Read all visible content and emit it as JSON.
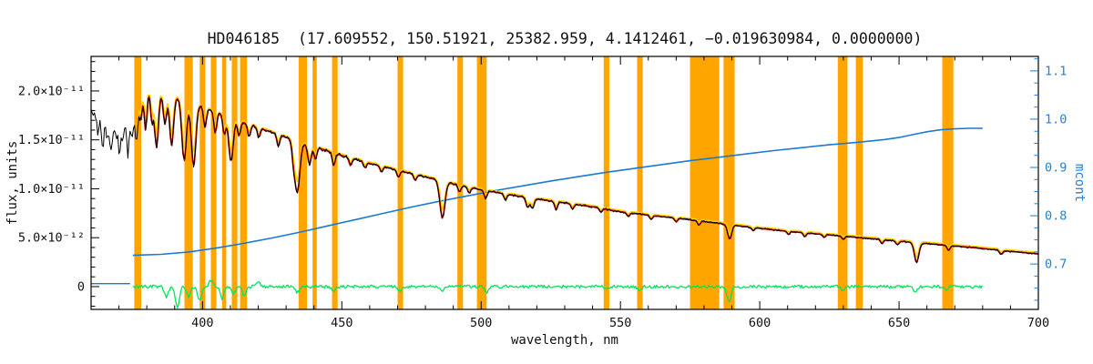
{
  "chart_data": {
    "type": "line",
    "title": "HD046185  (17.609552, 150.51921, 25382.959, 4.1412461, −0.019630984, 0.0000000)",
    "xlabel": "wavelength, nm",
    "ylabel_left": "flux, units",
    "ylabel_right": "mcont",
    "xlim": [
      360,
      700
    ],
    "ylim_left_e11": [
      -0.233,
      2.353
    ],
    "ylim_right": [
      0.606,
      1.13
    ],
    "flux_unit_scale": "1e-11",
    "grid": false,
    "legend": "none",
    "x_ticks": {
      "major": [
        400,
        450,
        500,
        550,
        600,
        650,
        700
      ],
      "labels": [
        "400",
        "450",
        "500",
        "550",
        "600",
        "650",
        "700"
      ],
      "minor_step": 10
    },
    "y_ticks_left": {
      "values_e11": [
        0,
        0.5,
        1.0,
        1.5,
        2.0
      ],
      "labels": [
        "0",
        "5.0×10⁻¹²",
        "1.0×10⁻¹¹",
        "1.5×10⁻¹¹",
        "2.0×10⁻¹¹"
      ],
      "minor_step_e11": 0.1
    },
    "y_ticks_right": {
      "values": [
        0.7,
        0.8,
        0.9,
        1.0,
        1.1
      ],
      "labels": [
        "0.7",
        "0.8",
        "0.9",
        "1.0",
        "1.1"
      ],
      "minor_step": 0.025
    },
    "colors": {
      "band": "#FFA500",
      "flux": "#000000",
      "model": "#DE0000",
      "continuum": "#FFD800",
      "mcont": "#1A7AD4",
      "right_axis": "#1A7AD4",
      "residual": "#00E55A",
      "axis": "#000000",
      "background": "#FFFFFF"
    },
    "masked_bands": [
      [
        375.5,
        378
      ],
      [
        393.5,
        396.5
      ],
      [
        399,
        401
      ],
      [
        403,
        405
      ],
      [
        407,
        408.5
      ],
      [
        410.5,
        412.5
      ],
      [
        413.5,
        416
      ],
      [
        434.5,
        437.5
      ],
      [
        439.5,
        441
      ],
      [
        446.5,
        448.5
      ],
      [
        470,
        472
      ],
      [
        491.5,
        493.5
      ],
      [
        498.5,
        502
      ],
      [
        544,
        546
      ],
      [
        556,
        558
      ],
      [
        575,
        585.5
      ],
      [
        587,
        591
      ],
      [
        628,
        631.5
      ],
      [
        634.5,
        637
      ],
      [
        665.5,
        669.5
      ]
    ],
    "series": {
      "flux_continuum_e11": [
        [
          360,
          1.78
        ],
        [
          364,
          1.81
        ],
        [
          368,
          1.85
        ],
        [
          372,
          1.9
        ],
        [
          376,
          1.96
        ],
        [
          380,
          2.02
        ],
        [
          384,
          2.0
        ],
        [
          388,
          1.97
        ],
        [
          392,
          1.92
        ],
        [
          396,
          1.88
        ],
        [
          400,
          1.84
        ],
        [
          405,
          1.78
        ],
        [
          410,
          1.73
        ],
        [
          415,
          1.675
        ],
        [
          420,
          1.625
        ],
        [
          425,
          1.575
        ],
        [
          430,
          1.525
        ],
        [
          435,
          1.475
        ],
        [
          440,
          1.43
        ],
        [
          445,
          1.385
        ],
        [
          450,
          1.34
        ],
        [
          455,
          1.3
        ],
        [
          460,
          1.26
        ],
        [
          465,
          1.225
        ],
        [
          470,
          1.19
        ],
        [
          475,
          1.155
        ],
        [
          480,
          1.12
        ],
        [
          485,
          1.085
        ],
        [
          490,
          1.05
        ],
        [
          495,
          1.02
        ],
        [
          500,
          0.99
        ],
        [
          510,
          0.94
        ],
        [
          520,
          0.895
        ],
        [
          530,
          0.855
        ],
        [
          540,
          0.815
        ],
        [
          550,
          0.765
        ],
        [
          560,
          0.73
        ],
        [
          570,
          0.7
        ],
        [
          580,
          0.665
        ],
        [
          590,
          0.63
        ],
        [
          600,
          0.595
        ],
        [
          610,
          0.565
        ],
        [
          620,
          0.54
        ],
        [
          630,
          0.515
        ],
        [
          640,
          0.49
        ],
        [
          650,
          0.465
        ],
        [
          660,
          0.44
        ],
        [
          670,
          0.415
        ],
        [
          680,
          0.39
        ],
        [
          690,
          0.36
        ],
        [
          700,
          0.335
        ]
      ],
      "absorption_lines": [
        [
          362.5,
          0.25,
          0.5
        ],
        [
          364.2,
          0.42,
          0.5
        ],
        [
          365.8,
          0.3,
          0.5
        ],
        [
          367.2,
          0.45,
          0.55
        ],
        [
          368.8,
          0.32,
          0.5
        ],
        [
          370.2,
          0.5,
          0.55
        ],
        [
          371.6,
          0.36,
          0.5
        ],
        [
          373.2,
          0.55,
          0.55
        ],
        [
          374.6,
          0.4,
          0.5
        ],
        [
          376.2,
          0.48,
          0.55
        ],
        [
          377.8,
          0.3,
          0.5
        ],
        [
          379.6,
          0.42,
          0.5
        ],
        [
          381.8,
          0.3,
          0.5
        ],
        [
          383.5,
          0.58,
          0.7
        ],
        [
          386.5,
          0.32,
          0.6
        ],
        [
          388.9,
          0.52,
          0.7
        ],
        [
          393.4,
          0.62,
          0.8
        ],
        [
          396.8,
          0.64,
          0.8
        ],
        [
          400.9,
          0.2,
          0.5
        ],
        [
          404.6,
          0.22,
          0.5
        ],
        [
          407.8,
          0.2,
          0.5
        ],
        [
          410.2,
          0.45,
          0.8
        ],
        [
          413.1,
          0.16,
          0.5
        ],
        [
          416.7,
          0.13,
          0.5
        ],
        [
          420.2,
          0.1,
          0.5
        ],
        [
          427.2,
          0.12,
          0.5
        ],
        [
          432.6,
          0.14,
          0.5
        ],
        [
          434.0,
          0.52,
          0.9
        ],
        [
          438.4,
          0.2,
          0.6
        ],
        [
          440.5,
          0.12,
          0.5
        ],
        [
          447.1,
          0.13,
          0.5
        ],
        [
          453.1,
          0.08,
          0.5
        ],
        [
          458.3,
          0.06,
          0.5
        ],
        [
          464.2,
          0.06,
          0.5
        ],
        [
          470.3,
          0.07,
          0.5
        ],
        [
          476.3,
          0.06,
          0.5
        ],
        [
          486.1,
          0.38,
          0.9
        ],
        [
          492.2,
          0.07,
          0.5
        ],
        [
          495.7,
          0.06,
          0.5
        ],
        [
          501.6,
          0.08,
          0.5
        ],
        [
          508.7,
          0.06,
          0.5
        ],
        [
          516.7,
          0.1,
          0.6
        ],
        [
          518.4,
          0.1,
          0.6
        ],
        [
          526.9,
          0.08,
          0.5
        ],
        [
          532.8,
          0.05,
          0.5
        ],
        [
          543.0,
          0.04,
          0.5
        ],
        [
          552.8,
          0.04,
          0.5
        ],
        [
          561.0,
          0.04,
          0.5
        ],
        [
          570.0,
          0.04,
          0.5
        ],
        [
          578.2,
          0.04,
          0.5
        ],
        [
          589.2,
          0.15,
          0.7
        ],
        [
          597.6,
          0.03,
          0.5
        ],
        [
          610.3,
          0.03,
          0.5
        ],
        [
          616.2,
          0.04,
          0.5
        ],
        [
          623.1,
          0.03,
          0.5
        ],
        [
          630.0,
          0.03,
          0.5
        ],
        [
          643.9,
          0.04,
          0.5
        ],
        [
          649.4,
          0.04,
          0.5
        ],
        [
          656.3,
          0.2,
          0.8
        ],
        [
          667.8,
          0.05,
          0.5
        ],
        [
          686.7,
          0.04,
          0.6
        ]
      ],
      "mcont": [
        [
          375,
          0.718
        ],
        [
          385,
          0.72
        ],
        [
          395,
          0.725
        ],
        [
          405,
          0.733
        ],
        [
          415,
          0.743
        ],
        [
          425,
          0.754
        ],
        [
          435,
          0.766
        ],
        [
          445,
          0.779
        ],
        [
          455,
          0.792
        ],
        [
          465,
          0.805
        ],
        [
          475,
          0.818
        ],
        [
          485,
          0.83
        ],
        [
          495,
          0.841
        ],
        [
          505,
          0.852
        ],
        [
          515,
          0.862
        ],
        [
          525,
          0.872
        ],
        [
          535,
          0.881
        ],
        [
          545,
          0.89
        ],
        [
          555,
          0.898
        ],
        [
          565,
          0.906
        ],
        [
          575,
          0.914
        ],
        [
          585,
          0.921
        ],
        [
          595,
          0.928
        ],
        [
          605,
          0.935
        ],
        [
          615,
          0.941
        ],
        [
          625,
          0.947
        ],
        [
          635,
          0.952
        ],
        [
          645,
          0.958
        ],
        [
          650,
          0.962
        ],
        [
          655,
          0.968
        ],
        [
          660,
          0.974
        ],
        [
          665,
          0.978
        ],
        [
          670,
          0.98
        ],
        [
          675,
          0.981
        ],
        [
          680,
          0.981
        ]
      ],
      "residual_spikes_e11": [
        [
          387,
          -0.1
        ],
        [
          391,
          -0.22
        ],
        [
          395,
          -0.1
        ],
        [
          399,
          -0.14
        ],
        [
          403,
          0.06
        ],
        [
          407,
          -0.12
        ],
        [
          411,
          -0.08
        ],
        [
          415,
          -0.1
        ],
        [
          420,
          0.05
        ],
        [
          434,
          -0.06
        ],
        [
          447,
          -0.05
        ],
        [
          471,
          -0.04
        ],
        [
          486,
          -0.04
        ],
        [
          502,
          -0.06
        ],
        [
          545,
          -0.03
        ],
        [
          557,
          -0.04
        ],
        [
          589,
          -0.16
        ],
        [
          630,
          -0.04
        ],
        [
          656,
          -0.05
        ],
        [
          667,
          -0.03
        ]
      ],
      "residual_noise_e11": 0.015,
      "flux_noise_e11": {
        "lt378": 0.05,
        "lt382": 0.03,
        "lt460": 0.016,
        "lt560": 0.011,
        "base": 0.009
      },
      "left_baseline_segment": {
        "x": [
          360,
          374
        ],
        "flux_e11": 0.03
      },
      "ranges": {
        "flux": [
          360,
          700
        ],
        "model": [
          377,
          700
        ],
        "mcont": [
          375,
          680
        ],
        "residual": [
          375,
          680
        ]
      }
    }
  }
}
